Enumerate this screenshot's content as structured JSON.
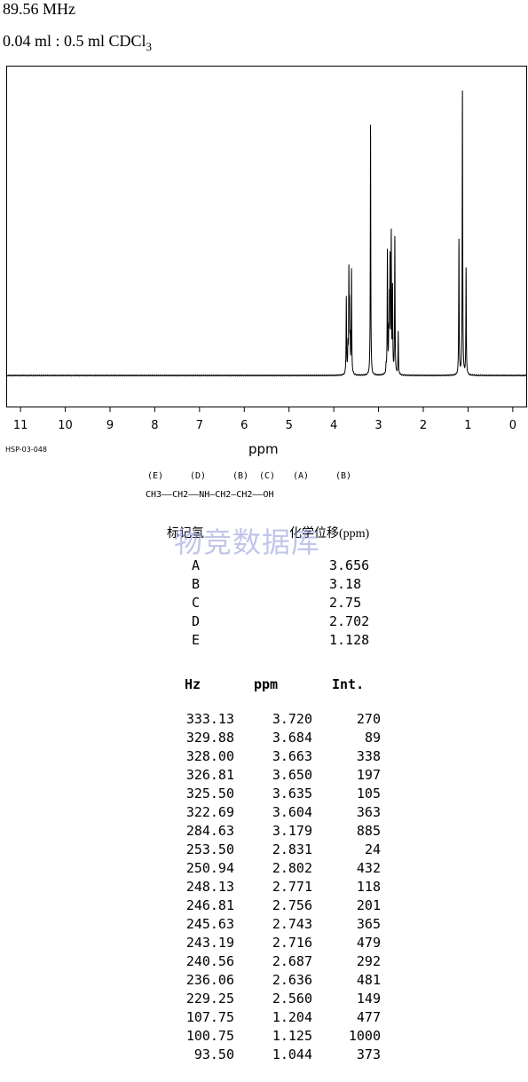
{
  "header": {
    "frequency": "89.56 MHz",
    "solvent_prefix": "0.04 ml : 0.5 ml CDCl",
    "solvent_sub": "3"
  },
  "chart_data": {
    "type": "line",
    "xlabel": "ppm",
    "xlim": [
      11.3,
      -0.3
    ],
    "x_ticks": [
      11,
      10,
      9,
      8,
      7,
      6,
      5,
      4,
      3,
      2,
      1,
      0
    ],
    "y_ticks": [],
    "grid": false,
    "spectrum_code": "HSP-03-048",
    "peaks": [
      {
        "ppm": 3.72,
        "intensity": 270
      },
      {
        "ppm": 3.684,
        "intensity": 89
      },
      {
        "ppm": 3.663,
        "intensity": 338
      },
      {
        "ppm": 3.65,
        "intensity": 197
      },
      {
        "ppm": 3.635,
        "intensity": 105
      },
      {
        "ppm": 3.604,
        "intensity": 363
      },
      {
        "ppm": 3.179,
        "intensity": 885
      },
      {
        "ppm": 2.831,
        "intensity": 24
      },
      {
        "ppm": 2.802,
        "intensity": 432
      },
      {
        "ppm": 2.771,
        "intensity": 118
      },
      {
        "ppm": 2.756,
        "intensity": 201
      },
      {
        "ppm": 2.743,
        "intensity": 365
      },
      {
        "ppm": 2.716,
        "intensity": 479
      },
      {
        "ppm": 2.687,
        "intensity": 292
      },
      {
        "ppm": 2.636,
        "intensity": 481
      },
      {
        "ppm": 2.56,
        "intensity": 149
      },
      {
        "ppm": 1.204,
        "intensity": 477
      },
      {
        "ppm": 1.125,
        "intensity": 1000
      },
      {
        "ppm": 1.044,
        "intensity": 373
      }
    ]
  },
  "structure": {
    "labels": [
      "(E)",
      "(D)",
      "(B)",
      "(C)",
      "(A)",
      "(B)"
    ],
    "formula": "CH3——CH2——NH—CH2—CH2——OH"
  },
  "shifts": {
    "header_label": "标记氢",
    "header_shift": "化学位移(ppm)",
    "rows": [
      {
        "label": "A",
        "ppm": "3.656"
      },
      {
        "label": "B",
        "ppm": "3.18"
      },
      {
        "label": "C",
        "ppm": "2.75"
      },
      {
        "label": "D",
        "ppm": "2.702"
      },
      {
        "label": "E",
        "ppm": "1.128"
      }
    ]
  },
  "peak_table": {
    "headers": [
      "Hz",
      "ppm",
      "Int."
    ],
    "rows": [
      [
        "333.13",
        "3.720",
        "270"
      ],
      [
        "329.88",
        "3.684",
        "89"
      ],
      [
        "328.00",
        "3.663",
        "338"
      ],
      [
        "326.81",
        "3.650",
        "197"
      ],
      [
        "325.50",
        "3.635",
        "105"
      ],
      [
        "322.69",
        "3.604",
        "363"
      ],
      [
        "284.63",
        "3.179",
        "885"
      ],
      [
        "253.50",
        "2.831",
        "24"
      ],
      [
        "250.94",
        "2.802",
        "432"
      ],
      [
        "248.13",
        "2.771",
        "118"
      ],
      [
        "246.81",
        "2.756",
        "201"
      ],
      [
        "245.63",
        "2.743",
        "365"
      ],
      [
        "243.19",
        "2.716",
        "479"
      ],
      [
        "240.56",
        "2.687",
        "292"
      ],
      [
        "236.06",
        "2.636",
        "481"
      ],
      [
        "229.25",
        "2.560",
        "149"
      ],
      [
        "107.75",
        "1.204",
        "477"
      ],
      [
        "100.75",
        "1.125",
        "1000"
      ],
      [
        "93.50",
        "1.044",
        "373"
      ]
    ]
  },
  "watermark": "物竞数据库"
}
